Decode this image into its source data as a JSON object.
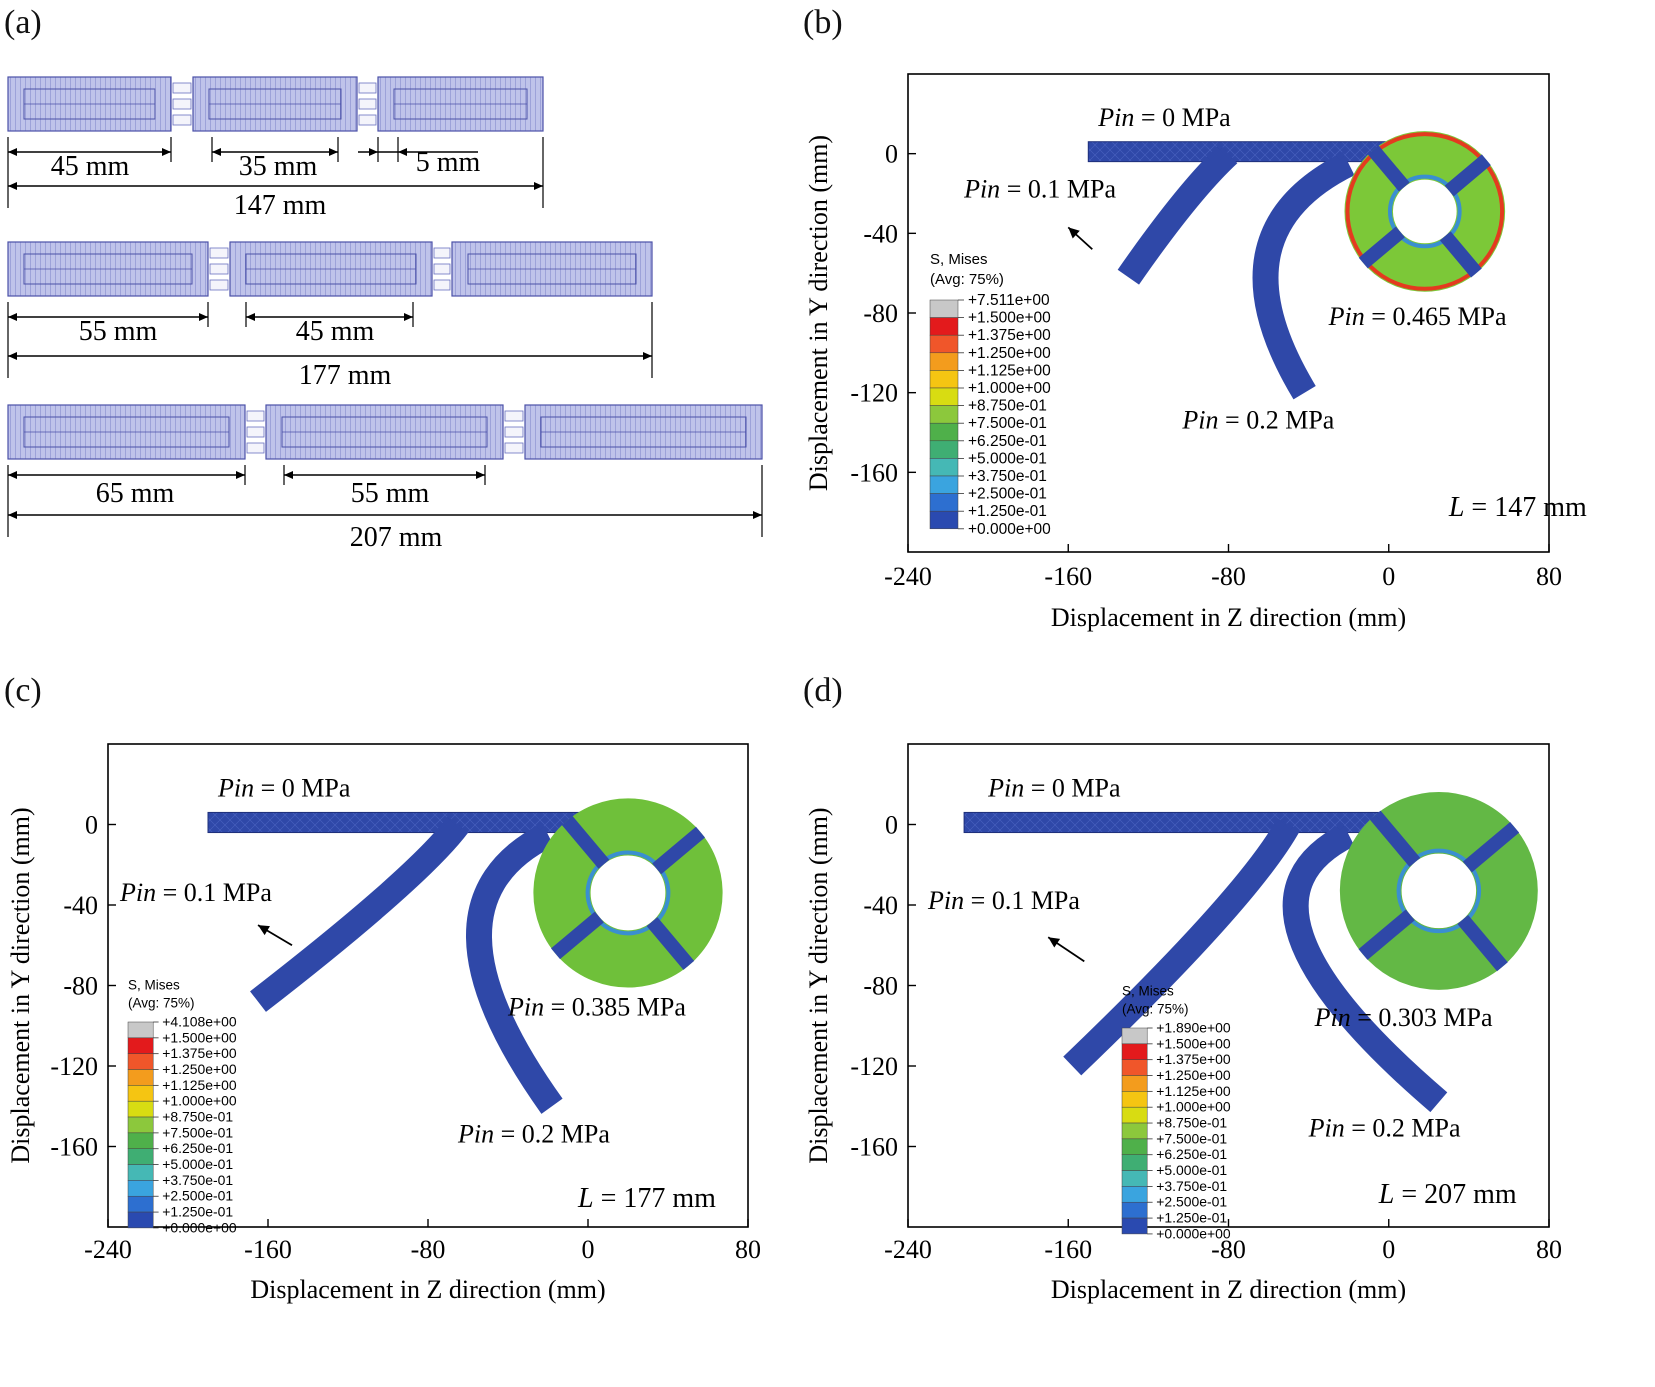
{
  "figure": {
    "panel_labels": [
      "(a)",
      "(b)",
      "(c)",
      "(d)"
    ]
  },
  "panel_a": {
    "rows": [
      {
        "dim_first": "45 mm",
        "dim_second": "35 mm",
        "dim_gap": "5 mm",
        "total": "147 mm"
      },
      {
        "dim_first": "55 mm",
        "dim_second": "45 mm",
        "total": "177 mm"
      },
      {
        "dim_first": "65 mm",
        "dim_second": "55 mm",
        "total": "207 mm"
      }
    ]
  },
  "plots": [
    {
      "id": "b",
      "xlabel": "Displacement in Z direction (mm)",
      "ylabel": "Displacement in Y direction (mm)",
      "xticks": [
        "-240",
        "-160",
        "-80",
        "0",
        "80"
      ],
      "yticks": [
        "0",
        "-40",
        "-80",
        "-120",
        "-160"
      ],
      "length_label": "L = 147 mm",
      "length_value": "147",
      "pressures": {
        "p0": "0 MPa",
        "p1": "0.1 MPa",
        "p2": "0.2 MPa",
        "pmax": "0.465 MPa"
      },
      "legend": {
        "title": "S, Mises",
        "subtitle": "(Avg: 75%)",
        "values": [
          "+7.511e+00",
          "+1.500e+00",
          "+1.375e+00",
          "+1.250e+00",
          "+1.125e+00",
          "+1.000e+00",
          "+8.750e-01",
          "+7.500e-01",
          "+6.250e-01",
          "+5.000e-01",
          "+3.750e-01",
          "+2.500e-01",
          "+1.250e-01",
          "+0.000e+00"
        ]
      }
    },
    {
      "id": "c",
      "xlabel": "Displacement in Z direction (mm)",
      "ylabel": "Displacement in Y direction (mm)",
      "xticks": [
        "-240",
        "-160",
        "-80",
        "0",
        "80"
      ],
      "yticks": [
        "0",
        "-40",
        "-80",
        "-120",
        "-160"
      ],
      "length_label": "L = 177 mm",
      "length_value": "177",
      "pressures": {
        "p0": "0 MPa",
        "p1": "0.1 MPa",
        "p2": "0.2 MPa",
        "pmax": "0.385 MPa"
      },
      "legend": {
        "title": "S, Mises",
        "subtitle": "(Avg: 75%)",
        "values": [
          "+4.108e+00",
          "+1.500e+00",
          "+1.375e+00",
          "+1.250e+00",
          "+1.125e+00",
          "+1.000e+00",
          "+8.750e-01",
          "+7.500e-01",
          "+6.250e-01",
          "+5.000e-01",
          "+3.750e-01",
          "+2.500e-01",
          "+1.250e-01",
          "+0.000e+00"
        ]
      }
    },
    {
      "id": "d",
      "xlabel": "Displacement in Z direction (mm)",
      "ylabel": "Displacement in Y direction (mm)",
      "xticks": [
        "-240",
        "-160",
        "-80",
        "0",
        "80"
      ],
      "yticks": [
        "0",
        "-40",
        "-80",
        "-120",
        "-160"
      ],
      "length_label": "L = 207 mm",
      "length_value": "207",
      "pressures": {
        "p0": "0 MPa",
        "p1": "0.1 MPa",
        "p2": "0.2 MPa",
        "pmax": "0.303 MPa"
      },
      "legend": {
        "title": "S, Mises",
        "subtitle": "(Avg: 75%)",
        "values": [
          "+1.890e+00",
          "+1.500e+00",
          "+1.375e+00",
          "+1.250e+00",
          "+1.125e+00",
          "+1.000e+00",
          "+8.750e-01",
          "+7.500e-01",
          "+6.250e-01",
          "+5.000e-01",
          "+3.750e-01",
          "+2.500e-01",
          "+1.250e-01",
          "+0.000e+00"
        ]
      }
    }
  ],
  "colors": {
    "actuator_fill": "#b9bde6",
    "actuator_stroke": "#4b51a8",
    "mesh_blue": "#2f48a8",
    "ring_hot_b": "#e43a1f",
    "ring_warm_b": "#7cc838",
    "ring_c": "#6fc03a",
    "ring_d": "#63b845",
    "legend_colors": [
      "#c8c8c8",
      "#e31a1c",
      "#f0562a",
      "#f39c1d",
      "#f5c512",
      "#d8dc12",
      "#8cc83c",
      "#4fb04a",
      "#3fae73",
      "#45b8b5",
      "#3aa4df",
      "#2d6fd0",
      "#2a4ab0",
      "#2b3a98"
    ]
  }
}
